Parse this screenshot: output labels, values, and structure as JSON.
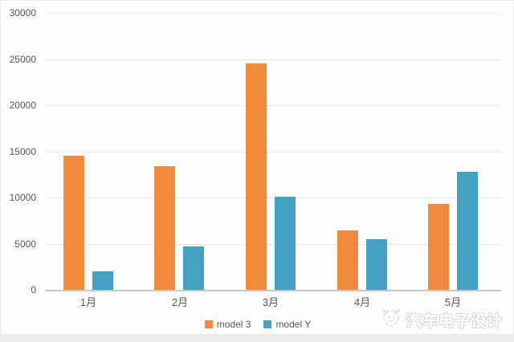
{
  "chart_data": {
    "type": "bar",
    "title": "",
    "xlabel": "",
    "ylabel": "",
    "categories": [
      "1月",
      "2月",
      "3月",
      "4月",
      "5月"
    ],
    "series": [
      {
        "name": "model 3",
        "color": "#F28A3D",
        "values": [
          14500,
          13400,
          24500,
          6400,
          9300
        ]
      },
      {
        "name": "model Y",
        "color": "#43A2C2",
        "values": [
          2000,
          4700,
          10100,
          5500,
          12800
        ]
      }
    ],
    "ylim": [
      0,
      30000
    ],
    "y_ticks": [
      0,
      5000,
      10000,
      15000,
      20000,
      25000,
      30000
    ],
    "grid": "horizontal",
    "legend_position": "bottom-center"
  },
  "watermark": {
    "text": "汽车电子设计",
    "logo_icon": "scribble-badge-icon"
  },
  "colors": {
    "background": "#fdfdfd",
    "gridline": "#e6e6e6",
    "axis_line": "#c9c9c9",
    "tick_label": "#595959",
    "watermark_text": "#ffffff"
  }
}
